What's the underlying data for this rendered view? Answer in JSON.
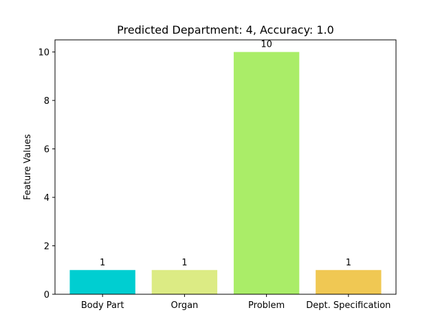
{
  "chart_data": {
    "type": "bar",
    "title": "Predicted Department: 4, Accuracy: 1.0",
    "xlabel": "",
    "ylabel": "Feature Values",
    "categories": [
      "Body Part",
      "Organ",
      "Problem",
      "Dept. Specification"
    ],
    "values": [
      1,
      1,
      10,
      1
    ],
    "data_labels": [
      "1",
      "1",
      "10",
      "1"
    ],
    "bar_colors": [
      "#00ced1",
      "#dceb84",
      "#aaed68",
      "#f0c853"
    ],
    "ylim": [
      0,
      10.5
    ],
    "yticks": [
      0,
      2,
      4,
      6,
      8,
      10
    ],
    "grid": false,
    "legend": "none"
  }
}
